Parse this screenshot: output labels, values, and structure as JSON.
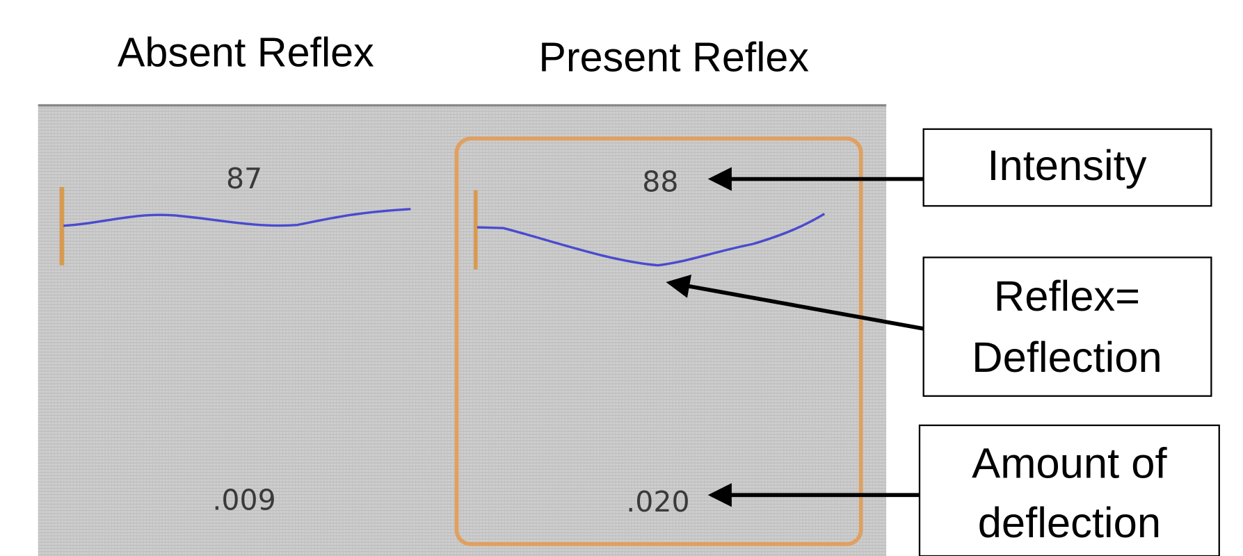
{
  "headings": [
    "Absent Reflex",
    "Present Reflex"
  ],
  "panels": [
    {
      "intensity": "87",
      "deflection": ".009"
    },
    {
      "intensity": "88",
      "deflection": ".020"
    }
  ],
  "annotations": [
    {
      "lines": [
        "Intensity"
      ]
    },
    {
      "lines": [
        "Reflex=",
        "Deflection"
      ]
    },
    {
      "lines": [
        "Amount of",
        "deflection"
      ]
    }
  ]
}
